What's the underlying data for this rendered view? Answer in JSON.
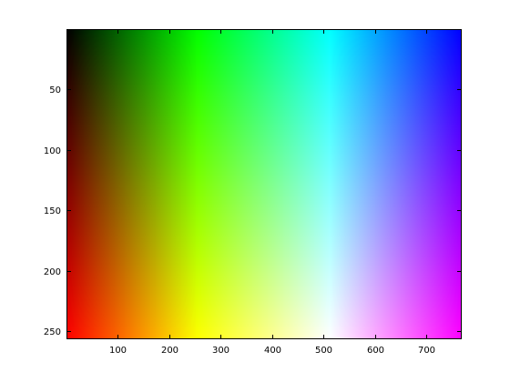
{
  "chart_data": {
    "type": "heatmap",
    "title": "",
    "xlabel": "",
    "ylabel": "",
    "xlim": [
      0.5,
      768.5
    ],
    "ylim": [
      0.5,
      256.5
    ],
    "y_direction": "reverse",
    "grid": false,
    "x_ticks": [
      100,
      200,
      300,
      400,
      500,
      600,
      700
    ],
    "x_tick_labels": [
      "100",
      "200",
      "300",
      "400",
      "500",
      "600",
      "700"
    ],
    "y_ticks": [
      50,
      100,
      150,
      200,
      250
    ],
    "y_tick_labels": [
      "50",
      "100",
      "150",
      "200",
      "250"
    ],
    "image_size": {
      "columns": 768,
      "rows": 256
    },
    "colormap": {
      "description": "RGB image; hue varies along columns, vertical blend along rows",
      "corners": {
        "top_left": "#000000",
        "top_right": "#0000ff",
        "bottom_left": "#ff0000",
        "bottom_right": "#ff00ff"
      },
      "top_row_stops": [
        {
          "column": 1,
          "color": "#000000"
        },
        {
          "column": 256,
          "color": "#00ff00"
        },
        {
          "column": 512,
          "color": "#00ffff"
        },
        {
          "column": 768,
          "color": "#0000ff"
        }
      ],
      "bottom_row_stops": [
        {
          "column": 1,
          "color": "#ff0000"
        },
        {
          "column": 256,
          "color": "#ffff00"
        },
        {
          "column": 512,
          "color": "#ffffff"
        },
        {
          "column": 768,
          "color": "#ff00ff"
        }
      ]
    }
  }
}
